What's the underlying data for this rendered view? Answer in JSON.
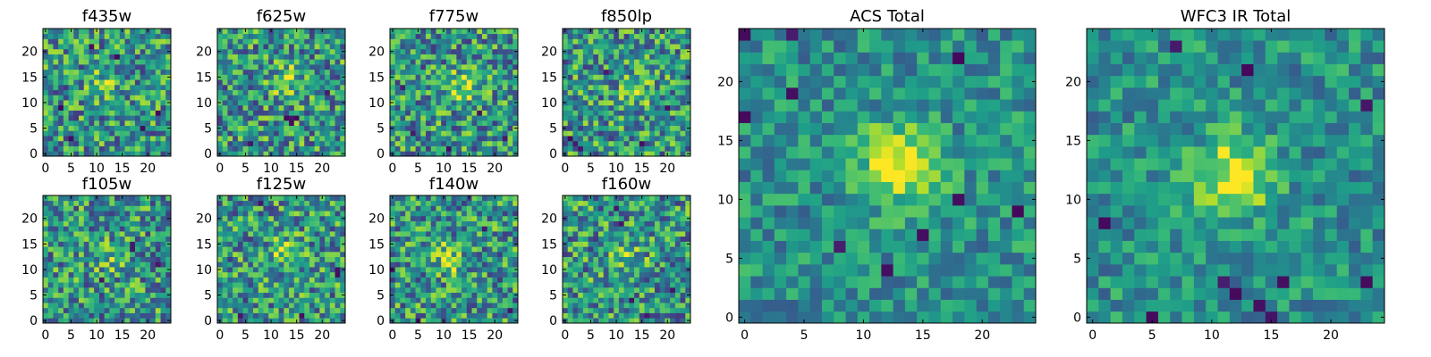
{
  "figure": {
    "description_colormap": "viridis",
    "colors": {
      "viridis_stops": [
        "#440154",
        "#482878",
        "#3e4989",
        "#31688e",
        "#26828e",
        "#1f9e89",
        "#35b779",
        "#6ece58",
        "#b5de2b",
        "#fde725"
      ],
      "frame": "#000000",
      "background": "#ffffff"
    }
  },
  "chart_data": [
    {
      "type": "heatmap",
      "title": "f435w",
      "grid_size": 25,
      "xticks": [
        0,
        5,
        10,
        15,
        20
      ],
      "yticks": [
        0,
        5,
        10,
        15,
        20
      ],
      "source_center": [
        12,
        14
      ],
      "source_strength": 0.08,
      "seed": 11,
      "dark_pixels": [
        [
          5,
          3
        ],
        [
          9,
          21
        ],
        [
          14,
          19
        ],
        [
          19,
          5
        ],
        [
          22,
          8
        ],
        [
          3,
          9
        ]
      ]
    },
    {
      "type": "heatmap",
      "title": "f625w",
      "grid_size": 25,
      "xticks": [
        0,
        5,
        10,
        15,
        20
      ],
      "yticks": [
        0,
        5,
        10,
        15,
        20
      ],
      "source_center": [
        13,
        14
      ],
      "source_strength": 0.12,
      "seed": 23,
      "dark_pixels": [
        [
          13,
          7
        ],
        [
          14,
          7
        ],
        [
          15,
          7
        ],
        [
          14,
          6
        ],
        [
          6,
          2
        ],
        [
          21,
          12
        ]
      ]
    },
    {
      "type": "heatmap",
      "title": "f775w",
      "grid_size": 25,
      "xticks": [
        0,
        5,
        10,
        15,
        20
      ],
      "yticks": [
        0,
        5,
        10,
        15,
        20
      ],
      "source_center": [
        14,
        13
      ],
      "source_strength": 0.14,
      "seed": 37,
      "dark_pixels": [
        [
          17,
          8
        ],
        [
          22,
          3
        ],
        [
          4,
          4
        ],
        [
          11,
          1
        ],
        [
          2,
          13
        ]
      ]
    },
    {
      "type": "heatmap",
      "title": "f850lp",
      "grid_size": 25,
      "xticks": [
        0,
        5,
        10,
        15,
        20
      ],
      "yticks": [
        0,
        5,
        10,
        15,
        20
      ],
      "source_center": [
        14,
        13
      ],
      "source_strength": 0.12,
      "seed": 41,
      "dark_pixels": [
        [
          2,
          2
        ],
        [
          3,
          1
        ],
        [
          1,
          3
        ],
        [
          8,
          16
        ],
        [
          15,
          2
        ],
        [
          20,
          9
        ]
      ]
    },
    {
      "type": "heatmap",
      "title": "f105w",
      "grid_size": 25,
      "xticks": [
        0,
        5,
        10,
        15,
        20
      ],
      "yticks": [
        0,
        5,
        10,
        15,
        20
      ],
      "source_center": [
        13,
        12
      ],
      "source_strength": 0.06,
      "seed": 53,
      "dark_pixels": [
        [
          17,
          15
        ],
        [
          17,
          14
        ],
        [
          22,
          11
        ],
        [
          11,
          8
        ]
      ]
    },
    {
      "type": "heatmap",
      "title": "f125w",
      "grid_size": 25,
      "xticks": [
        0,
        5,
        10,
        15,
        20
      ],
      "yticks": [
        0,
        5,
        10,
        15,
        20
      ],
      "source_center": [
        13,
        13
      ],
      "source_strength": 0.1,
      "seed": 61,
      "dark_pixels": [
        [
          23,
          10
        ],
        [
          23,
          9
        ],
        [
          8,
          23
        ],
        [
          16,
          1
        ],
        [
          4,
          1
        ]
      ]
    },
    {
      "type": "heatmap",
      "title": "f140w",
      "grid_size": 25,
      "xticks": [
        0,
        5,
        10,
        15,
        20
      ],
      "yticks": [
        0,
        5,
        10,
        15,
        20
      ],
      "source_center": [
        11,
        12
      ],
      "source_strength": 0.12,
      "seed": 71,
      "dark_pixels": [
        [
          5,
          0
        ],
        [
          23,
          2
        ],
        [
          0,
          10
        ],
        [
          18,
          18
        ]
      ]
    },
    {
      "type": "heatmap",
      "title": "f160w",
      "grid_size": 25,
      "xticks": [
        0,
        5,
        10,
        15,
        20
      ],
      "yticks": [
        0,
        5,
        10,
        15,
        20
      ],
      "source_center": [
        12,
        12
      ],
      "source_strength": 0.1,
      "seed": 83,
      "dark_pixels": [
        [
          11,
          19
        ],
        [
          10,
          22
        ],
        [
          16,
          1
        ],
        [
          13,
          4
        ],
        [
          21,
          6
        ]
      ]
    },
    {
      "type": "heatmap",
      "title": "ACS Total",
      "grid_size": 25,
      "xticks": [
        0,
        5,
        10,
        15,
        20
      ],
      "yticks": [
        0,
        5,
        10,
        15,
        20
      ],
      "source_center": [
        13,
        13
      ],
      "source_strength": 0.34,
      "seed": 97,
      "dark_pixels": [
        [
          0,
          24
        ],
        [
          4,
          24
        ],
        [
          4,
          19
        ],
        [
          0,
          17
        ],
        [
          18,
          10
        ],
        [
          23,
          9
        ],
        [
          15,
          7
        ],
        [
          8,
          6
        ],
        [
          18,
          22
        ],
        [
          12,
          4
        ]
      ]
    },
    {
      "type": "heatmap",
      "title": "WFC3 IR Total",
      "grid_size": 25,
      "xticks": [
        0,
        5,
        10,
        15,
        20
      ],
      "yticks": [
        0,
        5,
        10,
        15,
        20
      ],
      "source_center": [
        12,
        12
      ],
      "source_strength": 0.32,
      "seed": 101,
      "dark_pixels": [
        [
          5,
          0
        ],
        [
          15,
          0
        ],
        [
          14,
          1
        ],
        [
          12,
          2
        ],
        [
          11,
          3
        ],
        [
          16,
          3
        ],
        [
          13,
          21
        ],
        [
          23,
          3
        ],
        [
          23,
          18
        ],
        [
          7,
          23
        ],
        [
          1,
          8
        ]
      ]
    }
  ]
}
